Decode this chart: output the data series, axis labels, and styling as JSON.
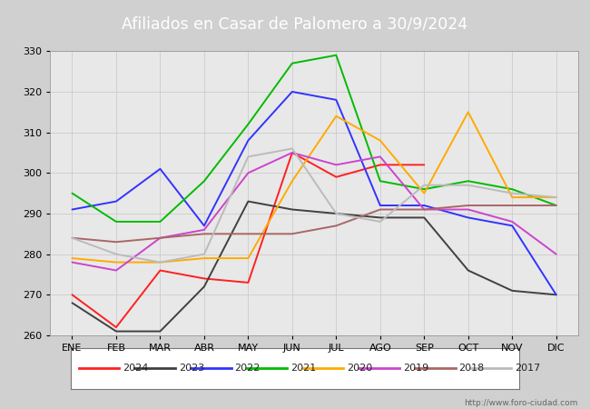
{
  "title": "Afiliados en Casar de Palomero a 30/9/2024",
  "header_bg": "#4a6fa5",
  "xlabel": "",
  "ylabel": "",
  "xlim": [
    -0.5,
    11.5
  ],
  "ylim": [
    260,
    330
  ],
  "yticks": [
    260,
    270,
    280,
    290,
    300,
    310,
    320,
    330
  ],
  "xtick_labels": [
    "ENE",
    "FEB",
    "MAR",
    "ABR",
    "MAY",
    "JUN",
    "JUL",
    "AGO",
    "SEP",
    "OCT",
    "NOV",
    "DIC"
  ],
  "grid_color": "#cccccc",
  "plot_bg": "#e8e8e8",
  "outer_bg": "#d0d0d0",
  "url": "http://www.foro-ciudad.com",
  "series": [
    {
      "label": "2024",
      "color": "#ff2020",
      "values": [
        270,
        262,
        276,
        274,
        273,
        305,
        299,
        302,
        302,
        null,
        null,
        null
      ]
    },
    {
      "label": "2023",
      "color": "#404040",
      "values": [
        268,
        261,
        261,
        272,
        293,
        291,
        290,
        289,
        289,
        276,
        271,
        270
      ]
    },
    {
      "label": "2022",
      "color": "#3333ff",
      "values": [
        291,
        293,
        301,
        287,
        308,
        320,
        318,
        292,
        292,
        289,
        287,
        270
      ]
    },
    {
      "label": "2021",
      "color": "#00bb00",
      "values": [
        295,
        288,
        288,
        298,
        312,
        327,
        329,
        298,
        296,
        298,
        296,
        292
      ]
    },
    {
      "label": "2020",
      "color": "#ffaa00",
      "values": [
        279,
        278,
        278,
        279,
        279,
        298,
        314,
        308,
        295,
        315,
        294,
        294
      ]
    },
    {
      "label": "2019",
      "color": "#cc44cc",
      "values": [
        278,
        276,
        284,
        286,
        300,
        305,
        302,
        304,
        291,
        291,
        288,
        280
      ]
    },
    {
      "label": "2018",
      "color": "#aa6666",
      "values": [
        284,
        283,
        284,
        285,
        285,
        285,
        287,
        291,
        291,
        292,
        292,
        292
      ]
    },
    {
      "label": "2017",
      "color": "#bbbbbb",
      "values": [
        284,
        280,
        278,
        280,
        304,
        306,
        290,
        288,
        297,
        297,
        295,
        294
      ]
    }
  ]
}
